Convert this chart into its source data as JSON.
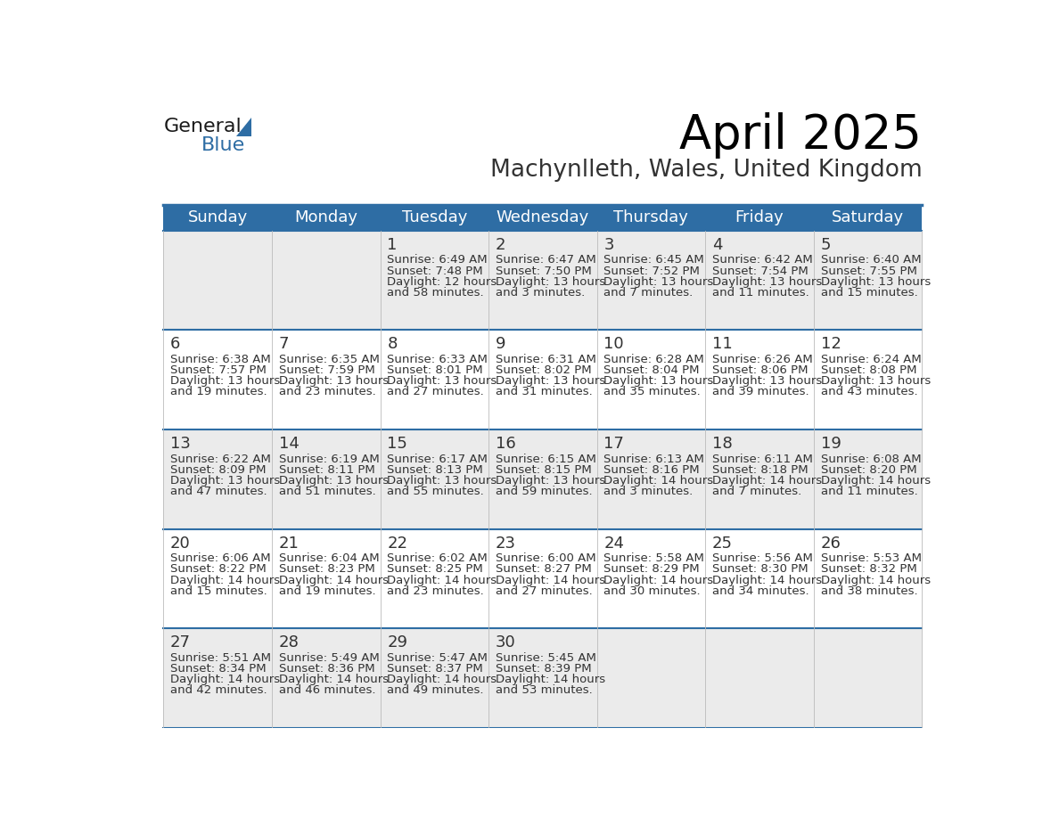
{
  "title": "April 2025",
  "subtitle": "Machynlleth, Wales, United Kingdom",
  "header_bg": "#2E6DA4",
  "header_text_color": "#FFFFFF",
  "cell_bg_light": "#EBEBEB",
  "cell_bg_white": "#FFFFFF",
  "day_names": [
    "Sunday",
    "Monday",
    "Tuesday",
    "Wednesday",
    "Thursday",
    "Friday",
    "Saturday"
  ],
  "text_color": "#333333",
  "line_color": "#2E6DA4",
  "days": [
    {
      "date": 1,
      "col": 2,
      "row": 0,
      "sunrise": "6:49 AM",
      "sunset": "7:48 PM",
      "daylight_h": "12 hours",
      "daylight_m": "58 minutes"
    },
    {
      "date": 2,
      "col": 3,
      "row": 0,
      "sunrise": "6:47 AM",
      "sunset": "7:50 PM",
      "daylight_h": "13 hours",
      "daylight_m": "3 minutes"
    },
    {
      "date": 3,
      "col": 4,
      "row": 0,
      "sunrise": "6:45 AM",
      "sunset": "7:52 PM",
      "daylight_h": "13 hours",
      "daylight_m": "7 minutes"
    },
    {
      "date": 4,
      "col": 5,
      "row": 0,
      "sunrise": "6:42 AM",
      "sunset": "7:54 PM",
      "daylight_h": "13 hours",
      "daylight_m": "11 minutes"
    },
    {
      "date": 5,
      "col": 6,
      "row": 0,
      "sunrise": "6:40 AM",
      "sunset": "7:55 PM",
      "daylight_h": "13 hours",
      "daylight_m": "15 minutes"
    },
    {
      "date": 6,
      "col": 0,
      "row": 1,
      "sunrise": "6:38 AM",
      "sunset": "7:57 PM",
      "daylight_h": "13 hours",
      "daylight_m": "19 minutes"
    },
    {
      "date": 7,
      "col": 1,
      "row": 1,
      "sunrise": "6:35 AM",
      "sunset": "7:59 PM",
      "daylight_h": "13 hours",
      "daylight_m": "23 minutes"
    },
    {
      "date": 8,
      "col": 2,
      "row": 1,
      "sunrise": "6:33 AM",
      "sunset": "8:01 PM",
      "daylight_h": "13 hours",
      "daylight_m": "27 minutes"
    },
    {
      "date": 9,
      "col": 3,
      "row": 1,
      "sunrise": "6:31 AM",
      "sunset": "8:02 PM",
      "daylight_h": "13 hours",
      "daylight_m": "31 minutes"
    },
    {
      "date": 10,
      "col": 4,
      "row": 1,
      "sunrise": "6:28 AM",
      "sunset": "8:04 PM",
      "daylight_h": "13 hours",
      "daylight_m": "35 minutes"
    },
    {
      "date": 11,
      "col": 5,
      "row": 1,
      "sunrise": "6:26 AM",
      "sunset": "8:06 PM",
      "daylight_h": "13 hours",
      "daylight_m": "39 minutes"
    },
    {
      "date": 12,
      "col": 6,
      "row": 1,
      "sunrise": "6:24 AM",
      "sunset": "8:08 PM",
      "daylight_h": "13 hours",
      "daylight_m": "43 minutes"
    },
    {
      "date": 13,
      "col": 0,
      "row": 2,
      "sunrise": "6:22 AM",
      "sunset": "8:09 PM",
      "daylight_h": "13 hours",
      "daylight_m": "47 minutes"
    },
    {
      "date": 14,
      "col": 1,
      "row": 2,
      "sunrise": "6:19 AM",
      "sunset": "8:11 PM",
      "daylight_h": "13 hours",
      "daylight_m": "51 minutes"
    },
    {
      "date": 15,
      "col": 2,
      "row": 2,
      "sunrise": "6:17 AM",
      "sunset": "8:13 PM",
      "daylight_h": "13 hours",
      "daylight_m": "55 minutes"
    },
    {
      "date": 16,
      "col": 3,
      "row": 2,
      "sunrise": "6:15 AM",
      "sunset": "8:15 PM",
      "daylight_h": "13 hours",
      "daylight_m": "59 minutes"
    },
    {
      "date": 17,
      "col": 4,
      "row": 2,
      "sunrise": "6:13 AM",
      "sunset": "8:16 PM",
      "daylight_h": "14 hours",
      "daylight_m": "3 minutes"
    },
    {
      "date": 18,
      "col": 5,
      "row": 2,
      "sunrise": "6:11 AM",
      "sunset": "8:18 PM",
      "daylight_h": "14 hours",
      "daylight_m": "7 minutes"
    },
    {
      "date": 19,
      "col": 6,
      "row": 2,
      "sunrise": "6:08 AM",
      "sunset": "8:20 PM",
      "daylight_h": "14 hours",
      "daylight_m": "11 minutes"
    },
    {
      "date": 20,
      "col": 0,
      "row": 3,
      "sunrise": "6:06 AM",
      "sunset": "8:22 PM",
      "daylight_h": "14 hours",
      "daylight_m": "15 minutes"
    },
    {
      "date": 21,
      "col": 1,
      "row": 3,
      "sunrise": "6:04 AM",
      "sunset": "8:23 PM",
      "daylight_h": "14 hours",
      "daylight_m": "19 minutes"
    },
    {
      "date": 22,
      "col": 2,
      "row": 3,
      "sunrise": "6:02 AM",
      "sunset": "8:25 PM",
      "daylight_h": "14 hours",
      "daylight_m": "23 minutes"
    },
    {
      "date": 23,
      "col": 3,
      "row": 3,
      "sunrise": "6:00 AM",
      "sunset": "8:27 PM",
      "daylight_h": "14 hours",
      "daylight_m": "27 minutes"
    },
    {
      "date": 24,
      "col": 4,
      "row": 3,
      "sunrise": "5:58 AM",
      "sunset": "8:29 PM",
      "daylight_h": "14 hours",
      "daylight_m": "30 minutes"
    },
    {
      "date": 25,
      "col": 5,
      "row": 3,
      "sunrise": "5:56 AM",
      "sunset": "8:30 PM",
      "daylight_h": "14 hours",
      "daylight_m": "34 minutes"
    },
    {
      "date": 26,
      "col": 6,
      "row": 3,
      "sunrise": "5:53 AM",
      "sunset": "8:32 PM",
      "daylight_h": "14 hours",
      "daylight_m": "38 minutes"
    },
    {
      "date": 27,
      "col": 0,
      "row": 4,
      "sunrise": "5:51 AM",
      "sunset": "8:34 PM",
      "daylight_h": "14 hours",
      "daylight_m": "42 minutes"
    },
    {
      "date": 28,
      "col": 1,
      "row": 4,
      "sunrise": "5:49 AM",
      "sunset": "8:36 PM",
      "daylight_h": "14 hours",
      "daylight_m": "46 minutes"
    },
    {
      "date": 29,
      "col": 2,
      "row": 4,
      "sunrise": "5:47 AM",
      "sunset": "8:37 PM",
      "daylight_h": "14 hours",
      "daylight_m": "49 minutes"
    },
    {
      "date": 30,
      "col": 3,
      "row": 4,
      "sunrise": "5:45 AM",
      "sunset": "8:39 PM",
      "daylight_h": "14 hours",
      "daylight_m": "53 minutes"
    }
  ],
  "num_rows": 5,
  "logo_general_color": "#1a1a1a",
  "logo_blue_color": "#2E6DA4",
  "title_fontsize": 38,
  "subtitle_fontsize": 19,
  "header_fontsize": 13,
  "date_fontsize": 13,
  "cell_fontsize": 9.5
}
